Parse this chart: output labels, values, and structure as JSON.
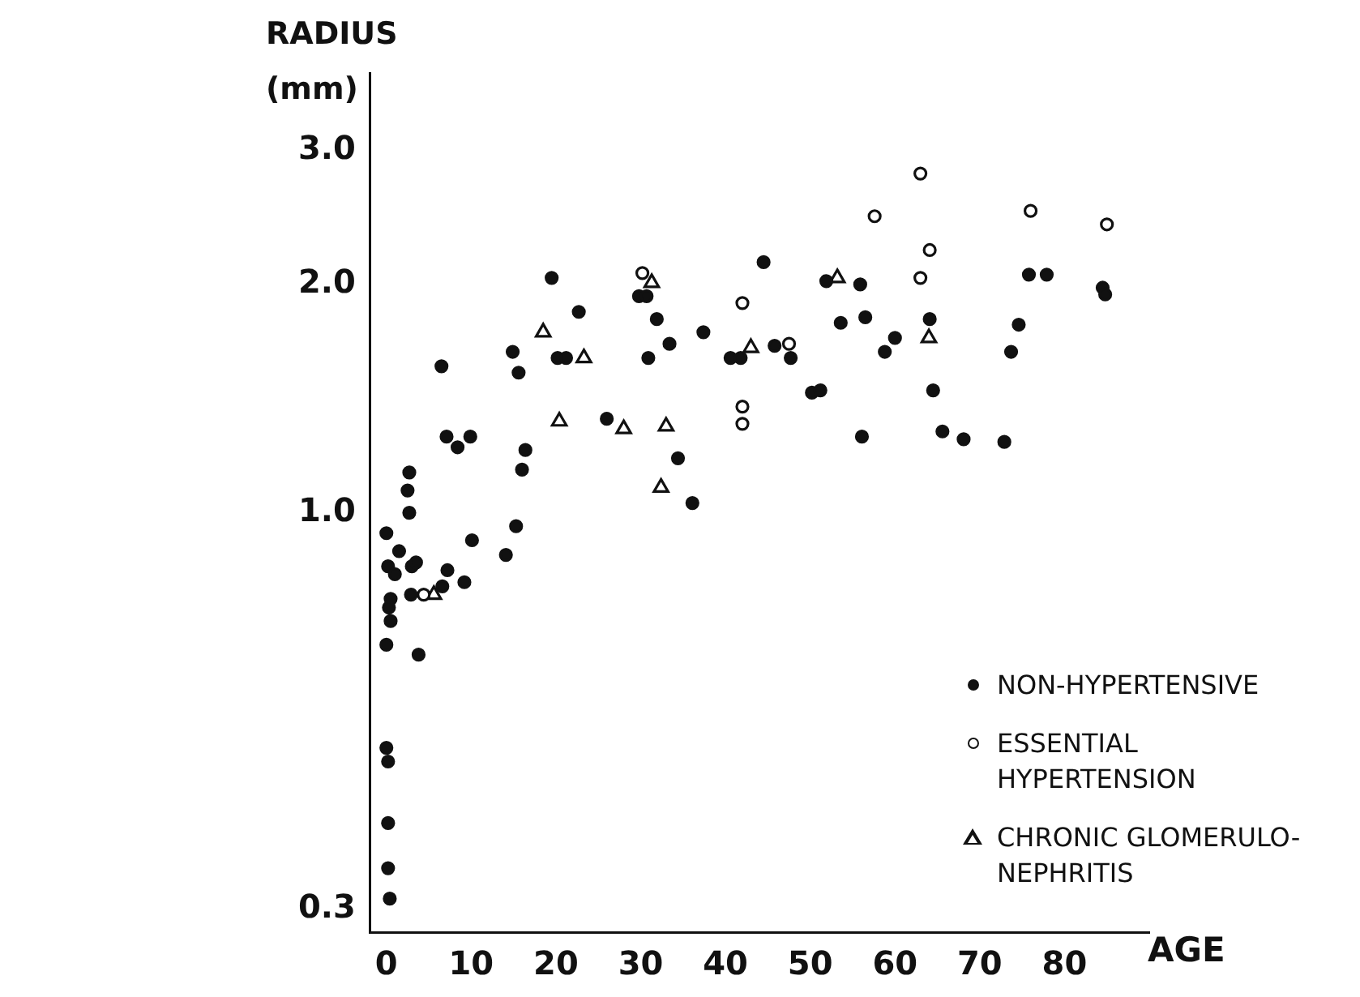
{
  "chart_data": {
    "type": "scatter",
    "xlabel": "AGE",
    "ylabel": "RADIUS (mm)",
    "log": "y",
    "xlim": [
      -1.9,
      90
    ],
    "xticks": [
      0,
      10,
      20,
      30,
      40,
      50,
      60,
      70,
      80
    ],
    "ylim": [
      0.28,
      3.8
    ],
    "yticks": [
      {
        "value": 0.3,
        "label": "0.3"
      },
      {
        "value": 1,
        "label": "1.0"
      },
      {
        "value": 2,
        "label": "2.0"
      },
      {
        "value": 3,
        "label": "3.0"
      }
    ],
    "grid": false,
    "legend": "bottom right",
    "series": [
      {
        "name": "NON-HYPERTENSIVE",
        "color": "#111111",
        "marker": "circle",
        "x": [
          0,
          0.2,
          0.5,
          0.3,
          0,
          0.5,
          0,
          0.2,
          0.2,
          0.2,
          0.4,
          1,
          1.5,
          3,
          3.5,
          2.7,
          2.5,
          2.7,
          2.9,
          3.8,
          6.6,
          7.2,
          6.5,
          7.1,
          8.4,
          9.2,
          9.9,
          10.1,
          14.1,
          14.9,
          15.3,
          15.6,
          16,
          16.4,
          19.5,
          20.2,
          21.2,
          22.7,
          26,
          29.8,
          30.7,
          31.9,
          30.9,
          33.4,
          34.4,
          36.1,
          37.4,
          40.6,
          41.8,
          44.5,
          45.8,
          47.7,
          50.2,
          51.2,
          51.9,
          53.6,
          55.9,
          56.1,
          56.5,
          58.8,
          60,
          64.1,
          64.5,
          65.6,
          68.1,
          72.9,
          73.7,
          74.6,
          75.8,
          77.9,
          84.5,
          84.8
        ],
        "values": [
          0.94,
          0.85,
          0.77,
          0.75,
          0.67,
          0.72,
          0.49,
          0.47,
          0.39,
          0.34,
          0.31,
          0.83,
          0.89,
          0.85,
          0.86,
          1.13,
          1.07,
          1.0,
          0.78,
          0.65,
          0.8,
          0.84,
          1.56,
          1.26,
          1.22,
          0.81,
          1.26,
          0.92,
          0.88,
          1.63,
          0.96,
          1.53,
          1.14,
          1.21,
          2.04,
          1.6,
          1.6,
          1.84,
          1.33,
          1.93,
          1.93,
          1.8,
          1.6,
          1.67,
          1.18,
          1.03,
          1.73,
          1.6,
          1.6,
          2.14,
          1.66,
          1.6,
          1.44,
          1.45,
          2.02,
          1.78,
          2.0,
          1.26,
          1.81,
          1.63,
          1.7,
          1.8,
          1.45,
          1.28,
          1.25,
          1.24,
          1.63,
          1.77,
          2.06,
          2.06,
          1.98,
          1.94
        ]
      },
      {
        "name": "ESSENTIAL HYPERTENSION",
        "color": "#ffffff",
        "marker": "circle",
        "x": [
          4.4,
          30.2,
          42,
          42,
          42,
          47.5,
          57.6,
          63,
          63,
          64.1,
          76,
          85
        ],
        "values": [
          0.78,
          2.07,
          1.89,
          1.38,
          1.31,
          1.67,
          2.46,
          2.8,
          2.04,
          2.22,
          2.5,
          2.4
        ]
      },
      {
        "name": "CHRONIC GLOMERULO-NEPHRITIS",
        "color": "#ffffff",
        "marker": "triangle",
        "x": [
          5.6,
          18.5,
          20.4,
          23.3,
          28,
          31.3,
          33,
          32.4,
          43,
          53.2,
          64
        ],
        "values": [
          0.78,
          1.73,
          1.32,
          1.6,
          1.29,
          2.01,
          1.3,
          1.08,
          1.65,
          2.04,
          1.7
        ]
      }
    ]
  }
}
